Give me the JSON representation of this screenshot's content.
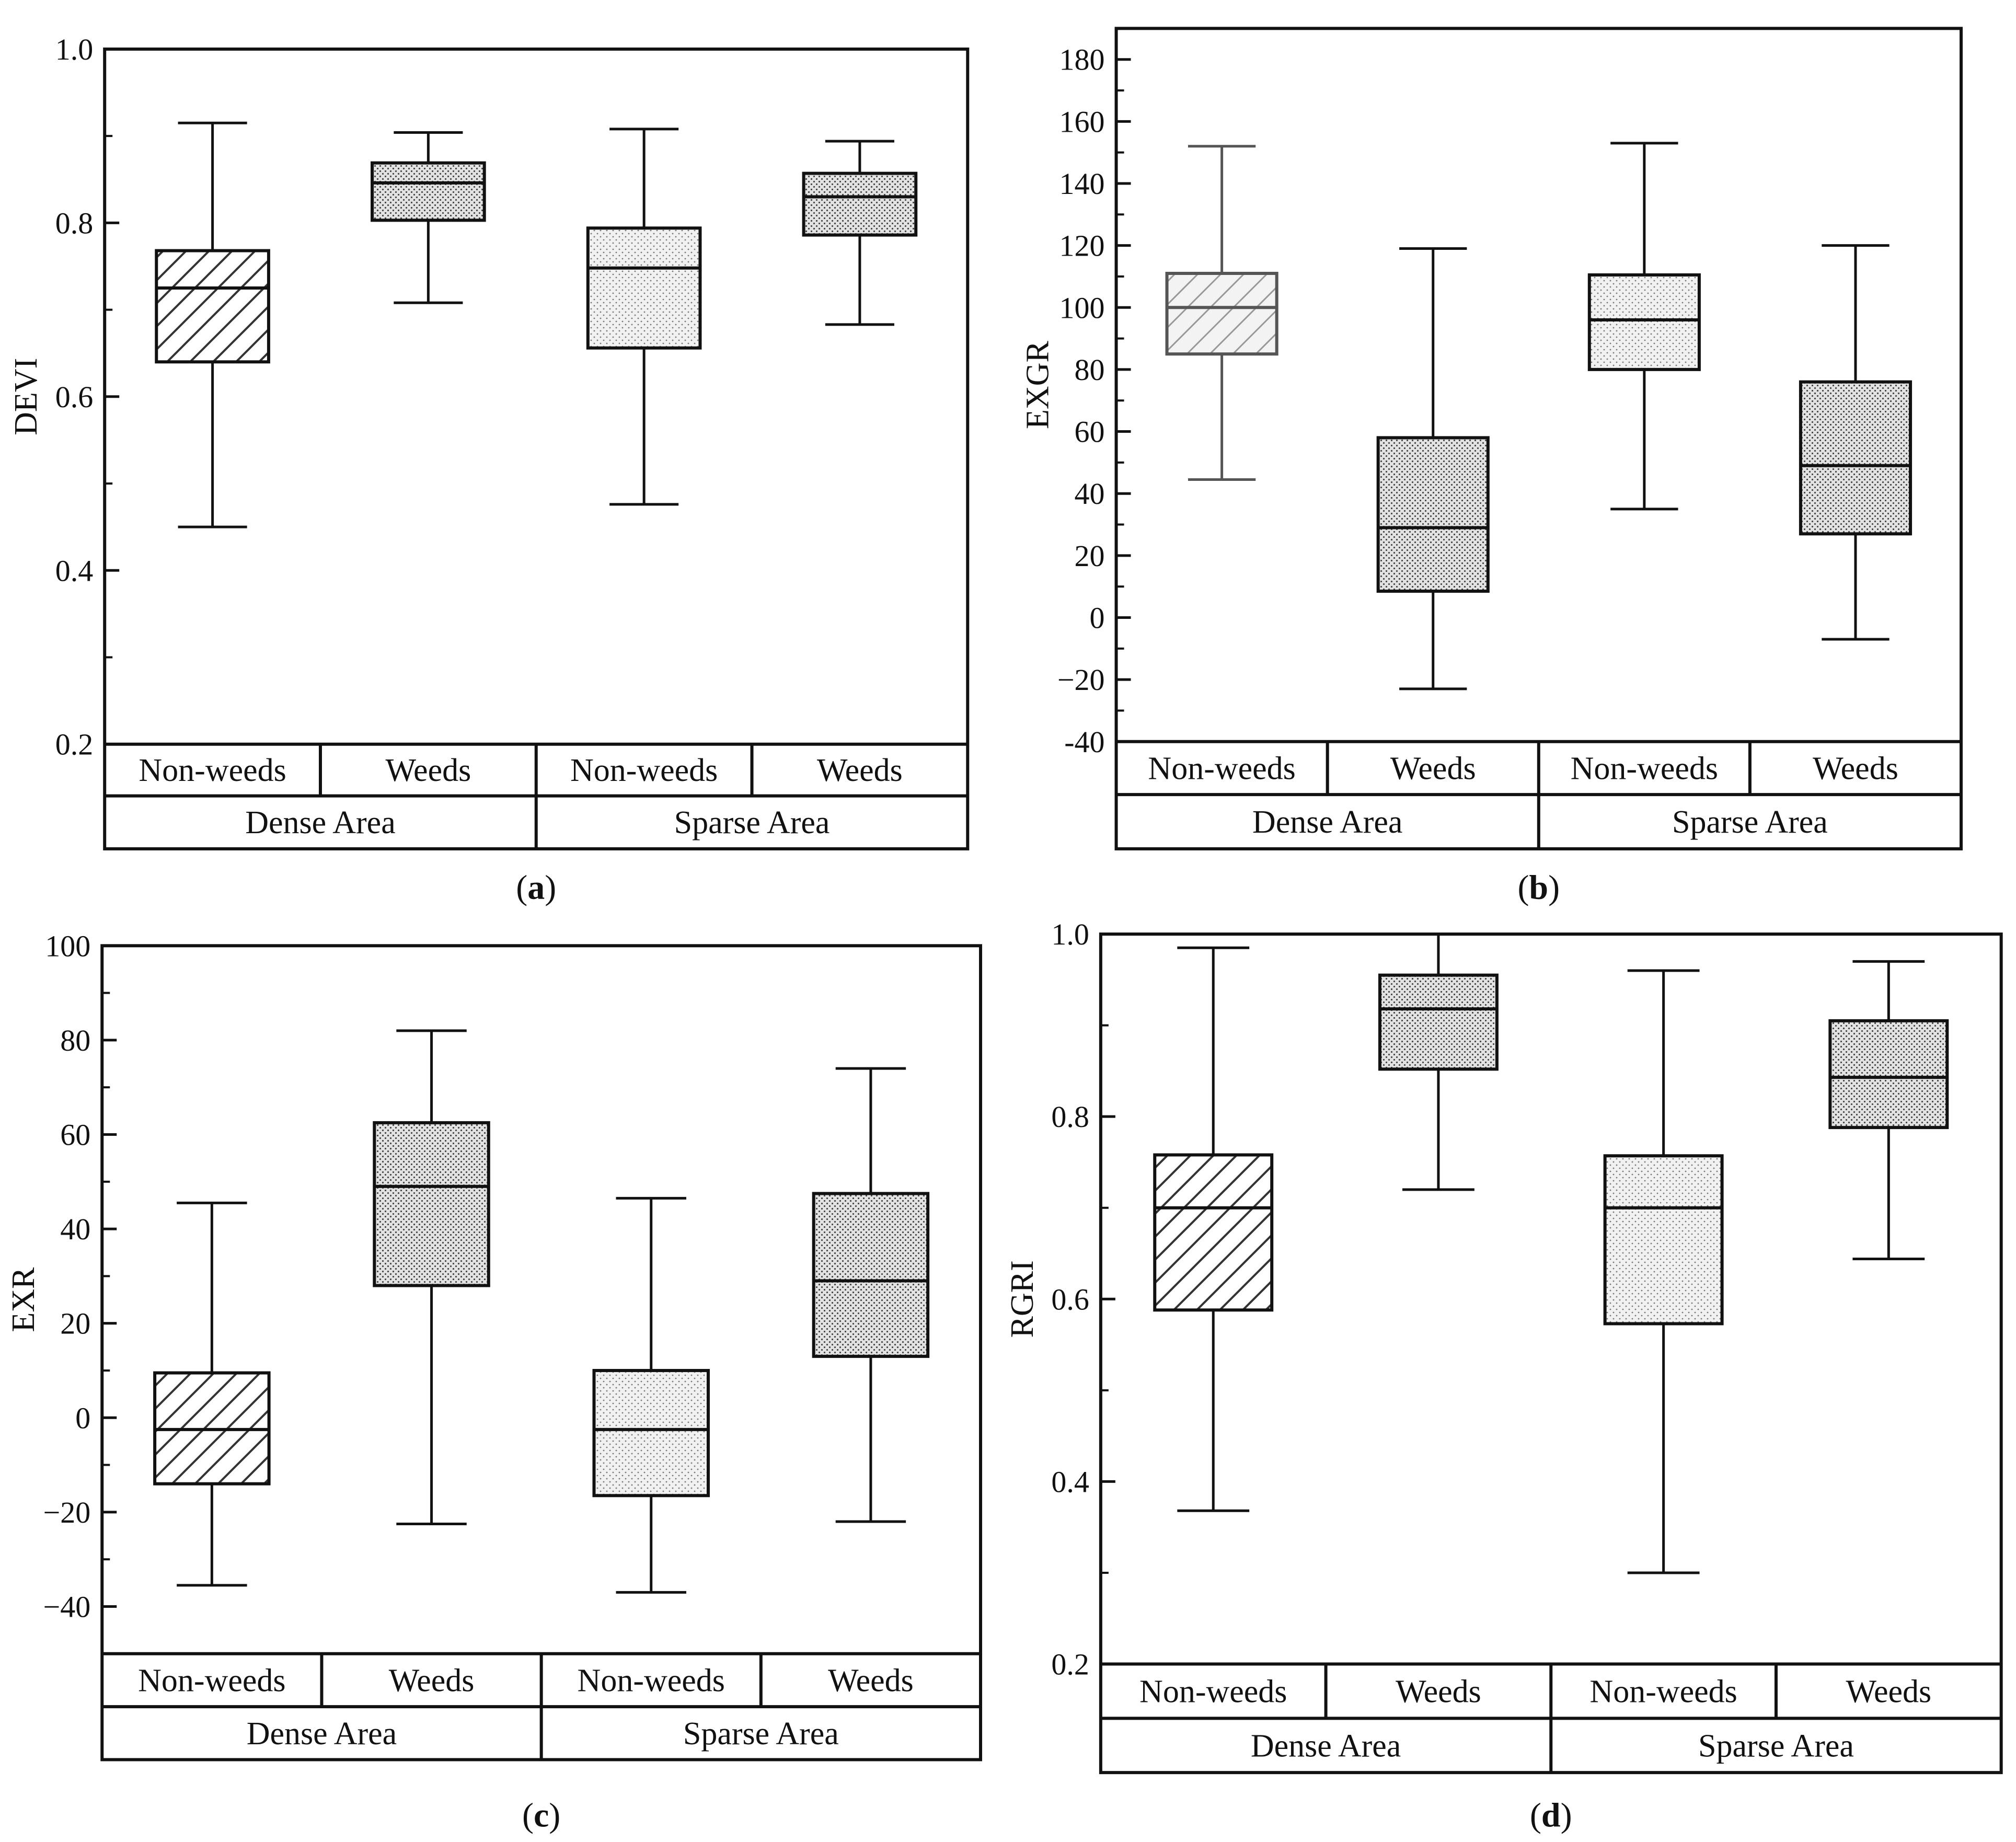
{
  "figure": {
    "description_labels": [
      "(a)",
      "(b)",
      "(c)",
      "(d)"
    ]
  },
  "chart_data": [
    {
      "type": "boxplot",
      "panel_label": "(a)",
      "ylabel": "DEVI",
      "ylim": [
        0.2,
        1.0
      ],
      "yticks": [
        0.2,
        0.4,
        0.6,
        0.8,
        1.0
      ],
      "ytick_labels": [
        "0.2",
        "0.4",
        "0.6",
        "0.8",
        "1.0"
      ],
      "groups": [
        "Dense Area",
        "Sparse Area"
      ],
      "categories": [
        "Non-weeds",
        "Weeds",
        "Non-weeds",
        "Weeds"
      ],
      "series": [
        {
          "name": "Non-weeds",
          "group": "Dense Area",
          "fill": "hatch",
          "min": 0.45,
          "q1": 0.64,
          "median": 0.725,
          "q3": 0.768,
          "max": 0.915
        },
        {
          "name": "Weeds",
          "group": "Dense Area",
          "fill": "dense-dots",
          "min": 0.708,
          "q1": 0.803,
          "median": 0.846,
          "q3": 0.869,
          "max": 0.904
        },
        {
          "name": "Non-weeds",
          "group": "Sparse Area",
          "fill": "light-dots",
          "min": 0.476,
          "q1": 0.656,
          "median": 0.748,
          "q3": 0.794,
          "max": 0.908
        },
        {
          "name": "Weeds",
          "group": "Sparse Area",
          "fill": "dense-dots",
          "min": 0.683,
          "q1": 0.786,
          "median": 0.83,
          "q3": 0.857,
          "max": 0.894
        }
      ]
    },
    {
      "type": "boxplot",
      "panel_label": "(b)",
      "ylabel": "EXGR",
      "ylim": [
        -40,
        180
      ],
      "yticks": [
        -40,
        -20,
        0,
        20,
        40,
        60,
        80,
        100,
        120,
        140,
        160,
        180
      ],
      "ytick_labels": [
        "-40",
        "−20",
        "0",
        "20",
        "40",
        "60",
        "80",
        "100",
        "120",
        "140",
        "160",
        "180"
      ],
      "groups": [
        "Dense Area",
        "Sparse Area"
      ],
      "categories": [
        "Non-weeds",
        "Weeds",
        "Non-weeds",
        "Weeds"
      ],
      "series": [
        {
          "name": "Non-weeds",
          "group": "Dense Area",
          "fill": "hatch-light",
          "min": 44.5,
          "q1": 85,
          "median": 100,
          "q3": 111,
          "max": 152
        },
        {
          "name": "Weeds",
          "group": "Dense Area",
          "fill": "dense-dots",
          "min": -23,
          "q1": 8.5,
          "median": 29,
          "q3": 58,
          "max": 119
        },
        {
          "name": "Non-weeds",
          "group": "Sparse Area",
          "fill": "light-dots",
          "min": 35,
          "q1": 80,
          "median": 96,
          "q3": 110.5,
          "max": 153
        },
        {
          "name": "Weeds",
          "group": "Sparse Area",
          "fill": "dense-dots",
          "min": -7,
          "q1": 27,
          "median": 49,
          "q3": 76,
          "max": 120
        }
      ]
    },
    {
      "type": "boxplot",
      "panel_label": "(c)",
      "ylabel": "EXR",
      "ylim": [
        -50,
        100
      ],
      "yticks": [
        -40,
        -20,
        0,
        20,
        40,
        60,
        80,
        100
      ],
      "ytick_labels": [
        "−40",
        "−20",
        "0",
        "20",
        "40",
        "60",
        "80",
        "100"
      ],
      "groups": [
        "Dense Area",
        "Sparse Area"
      ],
      "categories": [
        "Non-weeds",
        "Weeds",
        "Non-weeds",
        "Weeds"
      ],
      "series": [
        {
          "name": "Non-weeds",
          "group": "Dense Area",
          "fill": "hatch",
          "min": -35.5,
          "q1": -14,
          "median": -2.5,
          "q3": 9.5,
          "max": 45.5
        },
        {
          "name": "Weeds",
          "group": "Dense Area",
          "fill": "dense-dots",
          "min": -22.5,
          "q1": 28,
          "median": 49,
          "q3": 62.5,
          "max": 82
        },
        {
          "name": "Non-weeds",
          "group": "Sparse Area",
          "fill": "light-dots",
          "min": -37,
          "q1": -16.5,
          "median": -2.5,
          "q3": 10,
          "max": 46.5
        },
        {
          "name": "Weeds",
          "group": "Sparse Area",
          "fill": "dense-dots",
          "min": -22,
          "q1": 13,
          "median": 29,
          "q3": 47.5,
          "max": 74
        }
      ]
    },
    {
      "type": "boxplot",
      "panel_label": "(d)",
      "ylabel": "RGRI",
      "ylim": [
        0.2,
        1.0
      ],
      "yticks": [
        0.2,
        0.4,
        0.6,
        0.8,
        1.0
      ],
      "ytick_labels": [
        "0.2",
        "0.4",
        "0.6",
        "0.8",
        "1.0"
      ],
      "groups": [
        "Dense Area",
        "Sparse Area"
      ],
      "categories": [
        "Non-weeds",
        "Weeds",
        "Non-weeds",
        "Weeds"
      ],
      "series": [
        {
          "name": "Non-weeds",
          "group": "Dense Area",
          "fill": "hatch",
          "min": 0.368,
          "q1": 0.588,
          "median": 0.7,
          "q3": 0.758,
          "max": 0.985
        },
        {
          "name": "Weeds",
          "group": "Dense Area",
          "fill": "dense-dots",
          "min": 0.72,
          "q1": 0.852,
          "median": 0.918,
          "q3": 0.955,
          "max": 1.0
        },
        {
          "name": "Non-weeds",
          "group": "Sparse Area",
          "fill": "light-dots",
          "min": 0.3,
          "q1": 0.573,
          "median": 0.7,
          "q3": 0.757,
          "max": 0.96
        },
        {
          "name": "Weeds",
          "group": "Sparse Area",
          "fill": "dense-dots",
          "min": 0.644,
          "q1": 0.788,
          "median": 0.843,
          "q3": 0.905,
          "max": 0.97
        }
      ]
    }
  ]
}
